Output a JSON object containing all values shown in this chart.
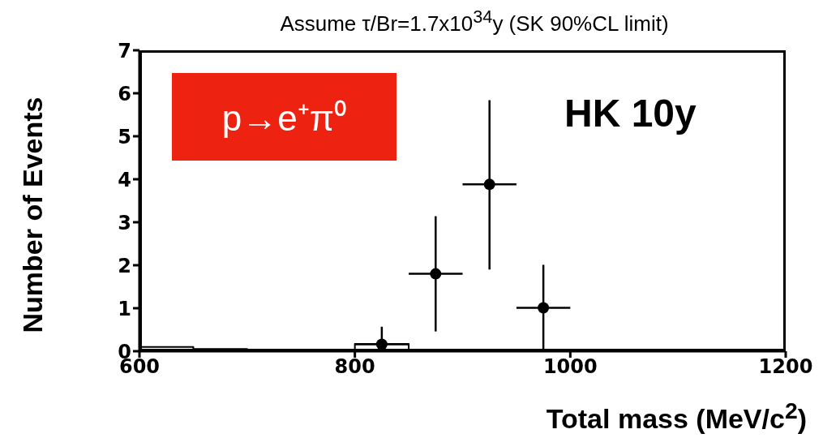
{
  "chart_data": {
    "type": "scatter",
    "title": "Assume τ/Br=1.7x10$^{34}$y (SK 90%CL limit)",
    "xlabel": "Total mass (MeV/c$^{2}$)",
    "ylabel": "Number of Events",
    "annotations": [
      "p→e⁺π⁰",
      "HK 10y"
    ],
    "xlim": [
      600,
      1200
    ],
    "xticks": [
      600,
      800,
      1000,
      1200
    ],
    "ylim": [
      0,
      7
    ],
    "yticks": [
      0,
      1,
      2,
      3,
      4,
      5,
      6,
      7
    ],
    "series": [
      {
        "type": "step",
        "color": "#000000",
        "x": [
          600,
          650,
          700,
          800,
          850
        ],
        "values": [
          0.1,
          0.05,
          0.02,
          0.17,
          0
        ]
      },
      {
        "marker": "circle",
        "color": "#000000",
        "x": [
          825,
          875,
          925,
          975
        ],
        "values": [
          0.16,
          1.8,
          3.88,
          1.01
        ],
        "errors": [
          [
            0,
            0.57
          ],
          [
            0.46,
            3.14
          ],
          [
            1.9,
            5.84
          ],
          [
            0,
            2.01
          ]
        ],
        "xerrors": [
          25,
          25,
          25,
          25
        ]
      }
    ]
  }
}
